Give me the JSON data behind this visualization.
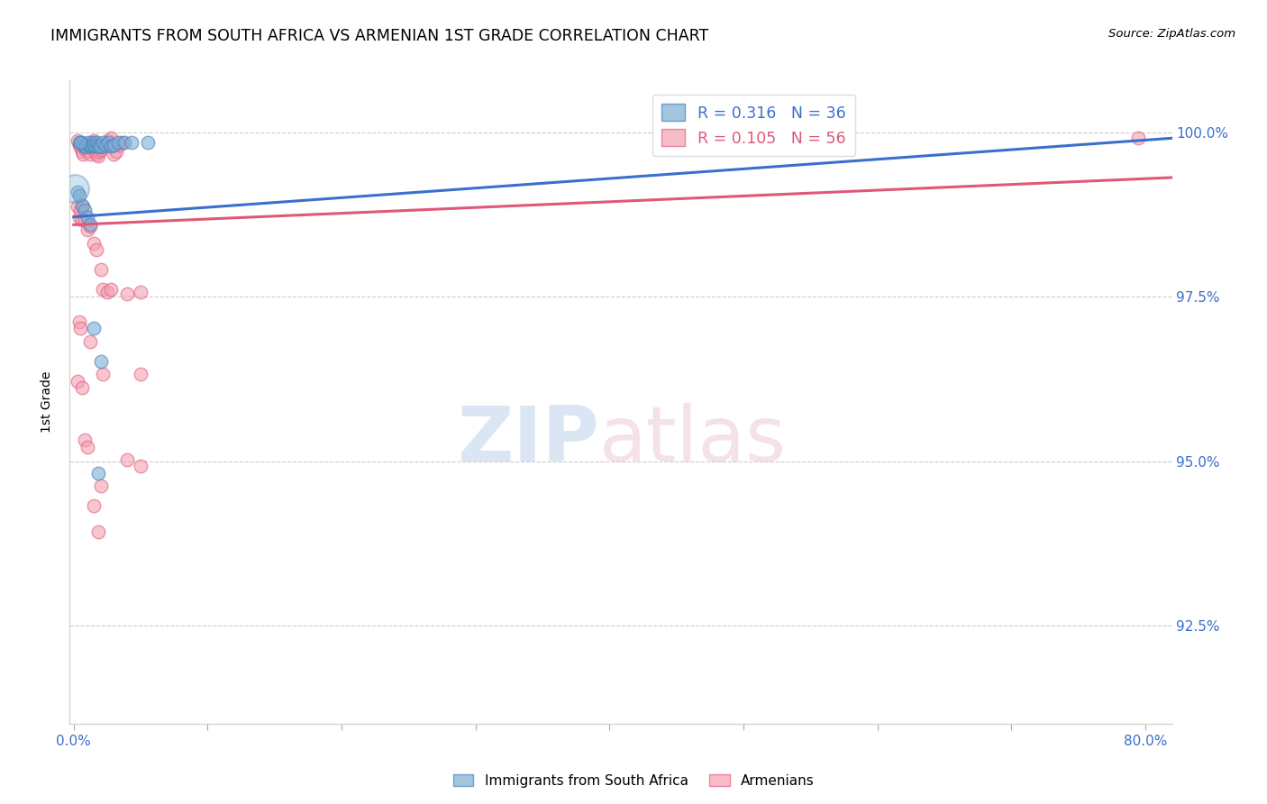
{
  "title": "IMMIGRANTS FROM SOUTH AFRICA VS ARMENIAN 1ST GRADE CORRELATION CHART",
  "source": "Source: ZipAtlas.com",
  "ylabel": "1st Grade",
  "yticks": [
    100.0,
    97.5,
    95.0,
    92.5
  ],
  "ymin": 91.0,
  "ymax": 100.8,
  "xmin": -0.003,
  "xmax": 0.82,
  "legend_blue": {
    "R": 0.316,
    "N": 36,
    "label": "Immigrants from South Africa"
  },
  "legend_pink": {
    "R": 0.105,
    "N": 56,
    "label": "Armenians"
  },
  "blue_color": "#7BAFD4",
  "pink_color": "#F4A0B0",
  "blue_edge_color": "#4A7FC0",
  "pink_edge_color": "#E06080",
  "blue_line_color": "#3B6FCC",
  "pink_line_color": "#E05878",
  "blue_trendline": [
    [
      0.0,
      98.72
    ],
    [
      0.82,
      99.92
    ]
  ],
  "pink_trendline": [
    [
      0.0,
      98.6
    ],
    [
      0.82,
      99.32
    ]
  ],
  "blue_points_small": [
    [
      0.004,
      99.85
    ],
    [
      0.006,
      99.85
    ],
    [
      0.007,
      99.82
    ],
    [
      0.008,
      99.8
    ],
    [
      0.009,
      99.78
    ],
    [
      0.01,
      99.82
    ],
    [
      0.011,
      99.85
    ],
    [
      0.012,
      99.8
    ],
    [
      0.013,
      99.82
    ],
    [
      0.014,
      99.85
    ],
    [
      0.015,
      99.82
    ],
    [
      0.016,
      99.8
    ],
    [
      0.017,
      99.85
    ],
    [
      0.018,
      99.82
    ],
    [
      0.019,
      99.78
    ],
    [
      0.02,
      99.8
    ],
    [
      0.022,
      99.85
    ],
    [
      0.024,
      99.82
    ],
    [
      0.026,
      99.85
    ],
    [
      0.028,
      99.8
    ],
    [
      0.03,
      99.82
    ],
    [
      0.033,
      99.85
    ],
    [
      0.038,
      99.85
    ],
    [
      0.043,
      99.85
    ],
    [
      0.005,
      99.85
    ],
    [
      0.055,
      99.85
    ],
    [
      0.003,
      99.1
    ],
    [
      0.004,
      99.05
    ],
    [
      0.006,
      98.9
    ],
    [
      0.008,
      98.82
    ],
    [
      0.01,
      98.72
    ],
    [
      0.012,
      98.6
    ],
    [
      0.015,
      97.02
    ],
    [
      0.02,
      96.52
    ],
    [
      0.018,
      94.82
    ],
    [
      0.545,
      99.88
    ]
  ],
  "blue_points_large": [
    [
      0.001,
      99.15,
      500
    ]
  ],
  "pink_points": [
    [
      0.003,
      99.88
    ],
    [
      0.004,
      99.82
    ],
    [
      0.005,
      99.78
    ],
    [
      0.006,
      99.72
    ],
    [
      0.007,
      99.68
    ],
    [
      0.008,
      99.82
    ],
    [
      0.009,
      99.75
    ],
    [
      0.01,
      99.8
    ],
    [
      0.011,
      99.72
    ],
    [
      0.012,
      99.68
    ],
    [
      0.013,
      99.82
    ],
    [
      0.014,
      99.78
    ],
    [
      0.015,
      99.88
    ],
    [
      0.016,
      99.72
    ],
    [
      0.017,
      99.68
    ],
    [
      0.018,
      99.65
    ],
    [
      0.019,
      99.72
    ],
    [
      0.02,
      99.75
    ],
    [
      0.022,
      99.78
    ],
    [
      0.024,
      99.82
    ],
    [
      0.026,
      99.88
    ],
    [
      0.028,
      99.92
    ],
    [
      0.03,
      99.68
    ],
    [
      0.032,
      99.72
    ],
    [
      0.034,
      99.82
    ],
    [
      0.036,
      99.85
    ],
    [
      0.003,
      98.88
    ],
    [
      0.004,
      98.72
    ],
    [
      0.005,
      98.82
    ],
    [
      0.006,
      98.68
    ],
    [
      0.007,
      98.88
    ],
    [
      0.008,
      98.68
    ],
    [
      0.01,
      98.52
    ],
    [
      0.012,
      98.58
    ],
    [
      0.015,
      98.32
    ],
    [
      0.017,
      98.22
    ],
    [
      0.02,
      97.92
    ],
    [
      0.022,
      97.62
    ],
    [
      0.025,
      97.58
    ],
    [
      0.028,
      97.62
    ],
    [
      0.004,
      97.12
    ],
    [
      0.005,
      97.02
    ],
    [
      0.012,
      96.82
    ],
    [
      0.003,
      96.22
    ],
    [
      0.006,
      96.12
    ],
    [
      0.022,
      96.32
    ],
    [
      0.05,
      96.32
    ],
    [
      0.008,
      95.32
    ],
    [
      0.01,
      95.22
    ],
    [
      0.04,
      95.02
    ],
    [
      0.015,
      94.32
    ],
    [
      0.018,
      93.92
    ],
    [
      0.02,
      94.62
    ],
    [
      0.05,
      94.92
    ],
    [
      0.04,
      97.55
    ],
    [
      0.05,
      97.58
    ],
    [
      0.795,
      99.92
    ]
  ]
}
